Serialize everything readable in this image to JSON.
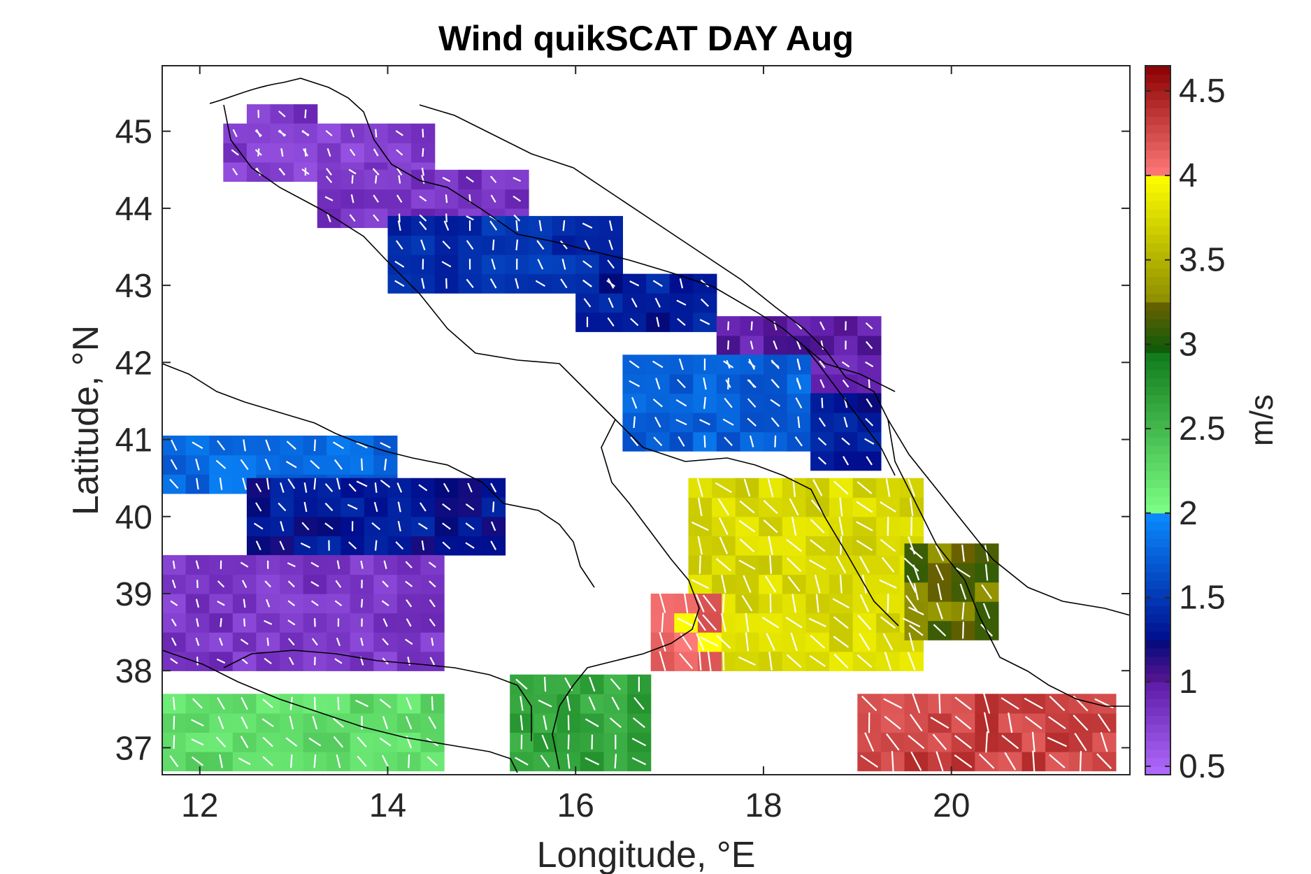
{
  "title": "Wind quikSCAT DAY Aug",
  "xlabel": "Longitude, °E",
  "ylabel": "Latitude, °N",
  "colorbar": {
    "label": "m/s",
    "min": 0.45,
    "max": 4.65,
    "ticks": [
      "0.5",
      "1",
      "1.5",
      "2",
      "2.5",
      "3",
      "3.5",
      "4",
      "4.5"
    ],
    "tick_values": [
      0.5,
      1,
      1.5,
      2,
      2.5,
      3,
      3.5,
      4,
      4.5
    ],
    "bands": [
      {
        "from": 0.45,
        "to": 1.0,
        "start": "#b26cff",
        "end": "#5c1aa6"
      },
      {
        "from": 1.0,
        "to": 1.25,
        "start": "#5a1593",
        "end": "#000a7a"
      },
      {
        "from": 1.25,
        "to": 2.0,
        "start": "#000e8f",
        "end": "#0a8cff"
      },
      {
        "from": 2.0,
        "to": 2.95,
        "start": "#7dff86",
        "end": "#107a1a"
      },
      {
        "from": 2.95,
        "to": 3.25,
        "start": "#0a5a0a",
        "end": "#6b6000"
      },
      {
        "from": 3.25,
        "to": 4.0,
        "start": "#8c8c00",
        "end": "#ffff00"
      },
      {
        "from": 4.0,
        "to": 4.65,
        "start": "#ff7a7a",
        "end": "#8b0000"
      }
    ]
  },
  "chart_data": {
    "type": "heatmap",
    "subtype": "wind speed grid with direction vectors over coastline map",
    "title": "Wind quikSCAT DAY Aug",
    "xlabel": "Longitude, °E",
    "ylabel": "Latitude, °N",
    "xlim": [
      11.6,
      21.9
    ],
    "ylim": [
      36.65,
      45.85
    ],
    "xticks": [
      12,
      14,
      16,
      18,
      20
    ],
    "yticks": [
      37,
      38,
      39,
      40,
      41,
      42,
      43,
      44,
      45
    ],
    "cell_size_deg": 0.25,
    "regions": [
      {
        "name": "",
        "lon": [
          12.5,
          13.25
        ],
        "lat": [
          44.35,
          45.35
        ],
        "speed": 0.8
      },
      {
        "name": "",
        "lon": [
          12.25,
          14.5
        ],
        "lat": [
          44.35,
          44.95
        ],
        "speed": 0.75
      },
      {
        "name": "",
        "lon": [
          13.25,
          15.5
        ],
        "lat": [
          43.75,
          44.4
        ],
        "speed": 0.85
      },
      {
        "name": "",
        "lon": [
          14.0,
          16.5
        ],
        "lat": [
          42.9,
          43.75
        ],
        "speed": 1.45
      },
      {
        "name": "",
        "lon": [
          16.0,
          17.5
        ],
        "lat": [
          42.4,
          43.0
        ],
        "speed": 1.35
      },
      {
        "name": "",
        "lon": [
          17.5,
          19.2
        ],
        "lat": [
          41.6,
          42.5
        ],
        "speed": 0.95
      },
      {
        "name": "",
        "lon": [
          16.5,
          18.5
        ],
        "lat": [
          40.85,
          41.9
        ],
        "speed": 1.75
      },
      {
        "name": "",
        "lon": [
          18.5,
          19.2
        ],
        "lat": [
          40.6,
          41.6
        ],
        "speed": 1.35
      },
      {
        "name": "",
        "lon": [
          11.6,
          14.0
        ],
        "lat": [
          40.3,
          41.0
        ],
        "speed": 1.8
      },
      {
        "name": "",
        "lon": [
          12.5,
          15.2
        ],
        "lat": [
          39.5,
          40.5
        ],
        "speed": 1.3
      },
      {
        "name": "",
        "lon": [
          11.6,
          14.5
        ],
        "lat": [
          38.0,
          39.5
        ],
        "speed": 0.8
      },
      {
        "name": "",
        "lon": [
          11.6,
          14.5
        ],
        "lat": [
          36.7,
          37.6
        ],
        "speed": 2.25
      },
      {
        "name": "",
        "lon": [
          15.3,
          16.7
        ],
        "lat": [
          36.7,
          37.8
        ],
        "speed": 2.65
      },
      {
        "name": "",
        "lon": [
          17.2,
          19.5
        ],
        "lat": [
          38.0,
          40.3
        ],
        "speed": 3.75
      },
      {
        "name": "",
        "lon": [
          19.5,
          20.3
        ],
        "lat": [
          38.4,
          39.5
        ],
        "speed": 3.2
      },
      {
        "name": "",
        "lon": [
          19.0,
          21.7
        ],
        "lat": [
          36.7,
          37.6
        ],
        "speed": 4.3
      },
      {
        "name": "",
        "lon": [
          16.8,
          17.5
        ],
        "lat": [
          38.0,
          38.9
        ],
        "speed": 4.1
      }
    ]
  }
}
